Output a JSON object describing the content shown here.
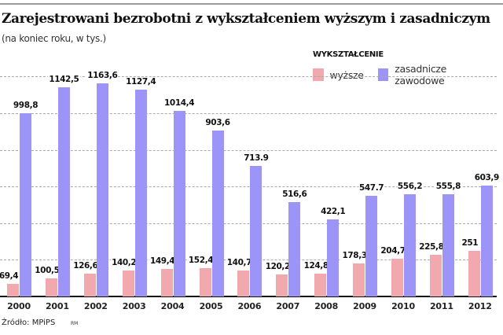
{
  "title": "Zarejestrowani bezrobotni z wykształceniem wyższym i zasadniczym",
  "subtitle": "(na koniec roku, w tys.)",
  "legend": {
    "title": "WYKSZTAŁCENIE",
    "items": [
      {
        "label": "wyższe",
        "color": "#f2a9ae"
      },
      {
        "label": "zasadnicze zawodowe",
        "color": "#9c95f7"
      }
    ]
  },
  "source": "Źródło: MPiPS",
  "credit": "RM",
  "colors": {
    "wyzsze": "#f2a9ae",
    "zasadnicze": "#9c95f7",
    "grid": "#aaaaaa",
    "baseline": "#111111"
  },
  "chart_data": {
    "type": "bar",
    "title": "Zarejestrowani bezrobotni z wykształceniem wyższym i zasadniczym",
    "subtitle": "(na koniec roku, w tys.)",
    "xlabel": "",
    "ylabel": "tys.",
    "categories": [
      "2000",
      "2001",
      "2002",
      "2003",
      "2004",
      "2005",
      "2006",
      "2007",
      "2008",
      "2009",
      "2010",
      "2011",
      "2012"
    ],
    "series": [
      {
        "name": "wyższe",
        "values": [
          69.4,
          100.5,
          126.6,
          140.2,
          149.4,
          152.4,
          140.7,
          120.2,
          124.8,
          178.3,
          204.7,
          225.8,
          251
        ],
        "labels": [
          "69,4",
          "100,5",
          "126,6",
          "140,2",
          "149,4",
          "152,4",
          "140,7",
          "120,2",
          "124,8",
          "178,3",
          "204,7",
          "225,8",
          "251"
        ]
      },
      {
        "name": "zasadnicze zawodowe",
        "values": [
          998.8,
          1142.5,
          1163.6,
          1127.4,
          1014.4,
          903.6,
          713.9,
          516.6,
          422.1,
          547.7,
          556.2,
          555.8,
          603.9
        ],
        "labels": [
          "998,8",
          "1142,5",
          "1163,6",
          "1127,4",
          "1014,4",
          "903,6",
          "713.9",
          "516,6",
          "422,1",
          "547.7",
          "556,2",
          "555,8",
          "603,9"
        ]
      }
    ],
    "ylim": [
      0,
      1200
    ],
    "gridlines": [
      200,
      400,
      600,
      800,
      1000,
      1200
    ],
    "grid": true,
    "legend_position": "top-right",
    "source": "Źródło: MPiPS"
  }
}
